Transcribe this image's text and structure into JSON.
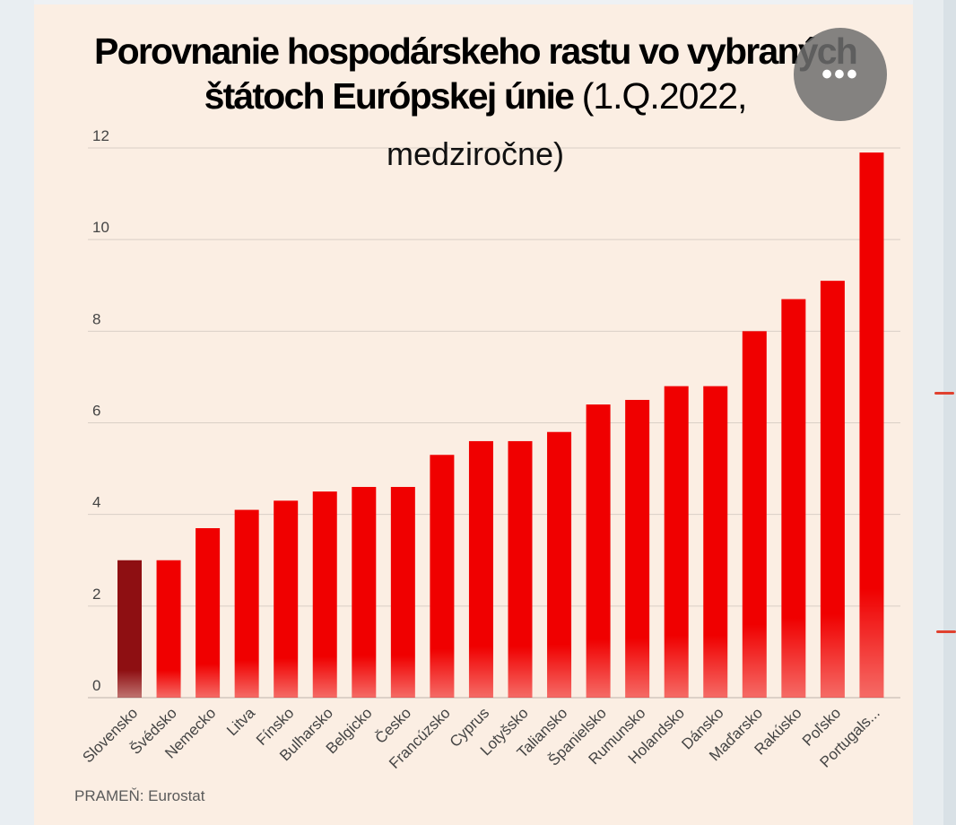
{
  "title_bold": "Porovnanie hospodárskeho rastu vo vybraných štátoch Európskej únie",
  "title_light": "(1.Q.2022,",
  "subtitle": "medziročne)",
  "source": "PRAMEŇ: Eurostat",
  "more_button": "•••",
  "colors": {
    "bar": "#f00000",
    "highlight": "#8e0f12",
    "background": "#fbeee3"
  },
  "chart_data": {
    "type": "bar",
    "categories": [
      "Slovensko",
      "Švédsko",
      "Nemecko",
      "Litva",
      "Fínsko",
      "Bulharsko",
      "Belgicko",
      "Česko",
      "Francúzsko",
      "Cyprus",
      "Lotyšsko",
      "Taliansko",
      "Španielsko",
      "Rumunsko",
      "Holandsko",
      "Dánsko",
      "Maďarsko",
      "Rakúsko",
      "Poľsko",
      "Portugals..."
    ],
    "values": [
      3.0,
      3.0,
      3.7,
      4.1,
      4.3,
      4.5,
      4.6,
      4.6,
      5.3,
      5.6,
      5.6,
      5.8,
      6.4,
      6.5,
      6.8,
      6.8,
      8.0,
      8.7,
      9.1,
      11.9
    ],
    "highlight_index": 0,
    "ylim": [
      0,
      12
    ],
    "yticks": [
      0,
      2,
      4,
      6,
      8,
      10,
      12
    ],
    "grid": true,
    "xlabel": "",
    "ylabel": ""
  }
}
